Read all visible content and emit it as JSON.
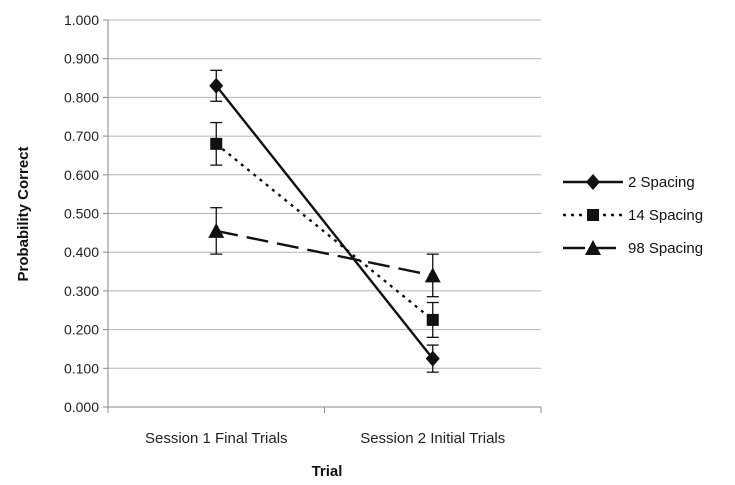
{
  "chart_data": {
    "type": "line",
    "xlabel": "Trial",
    "ylabel": "Probability Correct",
    "categories": [
      "Session 1 Final Trials",
      "Session 2 Initial Trials"
    ],
    "ylim": [
      0,
      1
    ],
    "yticks": [
      "0.000",
      "0.100",
      "0.200",
      "0.300",
      "0.400",
      "0.500",
      "0.600",
      "0.700",
      "0.800",
      "0.900",
      "1.000"
    ],
    "grid": true,
    "legend_position": "right",
    "series": [
      {
        "name": "2 Spacing",
        "marker": "diamond",
        "dash": "solid",
        "values": [
          0.83,
          0.125
        ],
        "errors": [
          0.04,
          0.035
        ]
      },
      {
        "name": "14 Spacing",
        "marker": "square",
        "dash": "dotted",
        "values": [
          0.68,
          0.225
        ],
        "errors": [
          0.055,
          0.045
        ]
      },
      {
        "name": "98 Spacing",
        "marker": "triangle",
        "dash": "long-dash",
        "values": [
          0.455,
          0.34
        ],
        "errors": [
          0.06,
          0.055
        ]
      }
    ],
    "colors": {
      "series": "#111111",
      "grid": "#b4b4b4",
      "axis": "#888888"
    }
  }
}
